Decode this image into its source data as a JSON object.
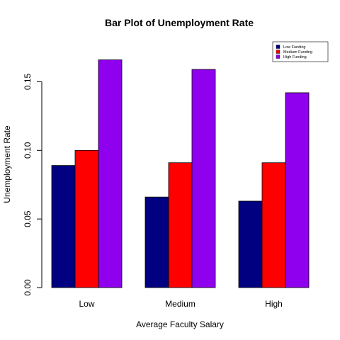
{
  "chart_data": {
    "type": "bar",
    "title": "Bar Plot of Unemployment Rate",
    "xlabel": "Average Faculty Salary",
    "ylabel": "Unemployment Rate",
    "categories": [
      "Low",
      "Medium",
      "High"
    ],
    "series": [
      {
        "name": "Low Funding",
        "color": "#000080",
        "values": [
          0.089,
          0.066,
          0.063
        ]
      },
      {
        "name": "Medium Funding",
        "color": "#ff0000",
        "values": [
          0.1,
          0.091,
          0.091
        ]
      },
      {
        "name": "High Funding",
        "color": "#8f00ee",
        "values": [
          0.166,
          0.159,
          0.142
        ]
      }
    ],
    "ylim": [
      0,
      0.17
    ],
    "yticks": [
      0,
      0.05,
      0.1,
      0.15
    ],
    "ytick_labels": [
      "0.00",
      "0.05",
      "0.10",
      "0.15"
    ],
    "grid": false,
    "legend_position": "top-right"
  }
}
